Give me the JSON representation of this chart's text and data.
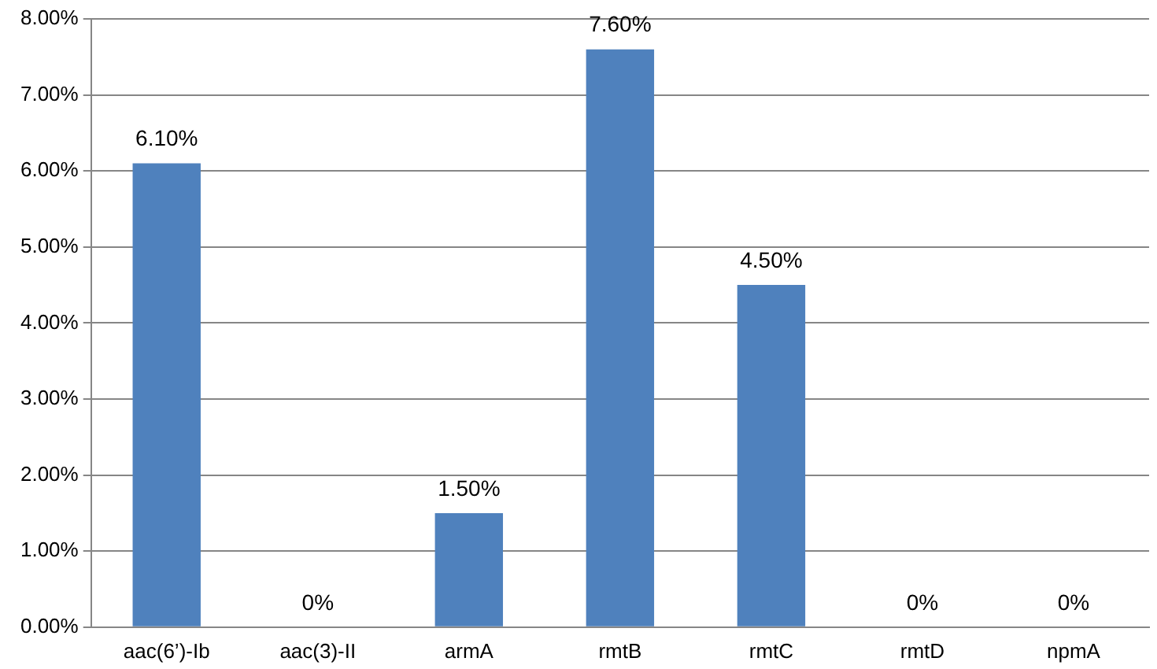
{
  "chart_data": {
    "type": "bar",
    "categories": [
      "aac(6’)-Ib",
      "aac(3)-II",
      "armA",
      "rmtB",
      "rmtC",
      "rmtD",
      "npmA"
    ],
    "values": [
      6.1,
      0,
      1.5,
      7.6,
      4.5,
      0,
      0
    ],
    "value_labels": [
      "6.10%",
      "0%",
      "1.50%",
      "7.60%",
      "4.50%",
      "0%",
      "0%"
    ],
    "color": "#4f81bd",
    "ylim": [
      0,
      8
    ],
    "yticks": [
      {
        "value": 0,
        "label": "0.00%"
      },
      {
        "value": 1,
        "label": "1.00%"
      },
      {
        "value": 2,
        "label": "2.00%"
      },
      {
        "value": 3,
        "label": "3.00%"
      },
      {
        "value": 4,
        "label": "4.00%"
      },
      {
        "value": 5,
        "label": "5.00%"
      },
      {
        "value": 6,
        "label": "6.00%"
      },
      {
        "value": 7,
        "label": "7.00%"
      },
      {
        "value": 8,
        "label": "8.00%"
      }
    ],
    "grid": "y",
    "legend": false
  }
}
